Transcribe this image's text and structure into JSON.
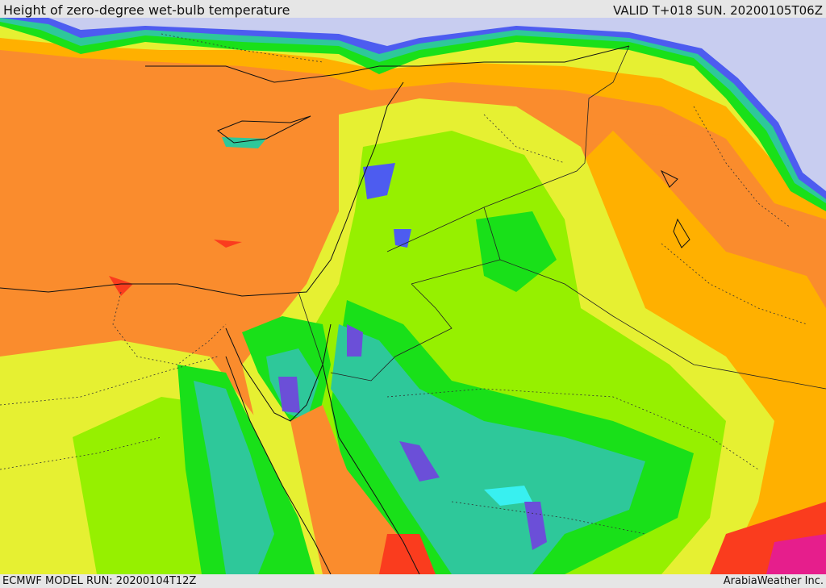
{
  "header": {
    "title": "Height of zero-degree wet-bulb temperature",
    "valid": "VALID T+018 SUN. 20200105T06Z"
  },
  "footer": {
    "model_run": "ECMWF MODEL RUN: 20200104T12Z",
    "credit": "ArabiaWeather Inc."
  },
  "colors": {
    "very_low": "#c8cdf0",
    "low_blue": "#4d5cf0",
    "indigo": "#6b4fd8",
    "cyan": "#38f0f0",
    "teal": "#2ec89a",
    "green": "#19e019",
    "lime": "#96f000",
    "yellow": "#e6f032",
    "orange_light": "#ffb000",
    "orange": "#fa8c2d",
    "red": "#fa3c1e",
    "magenta": "#e61e8c"
  }
}
